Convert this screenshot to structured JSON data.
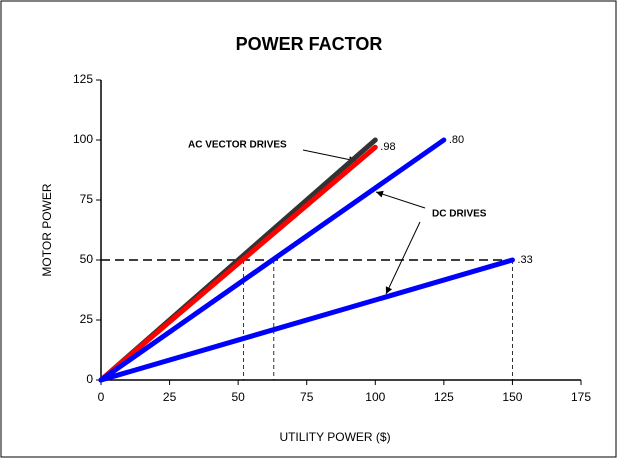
{
  "chart_data": {
    "type": "line",
    "title": "POWER FACTOR",
    "xlabel": "UTILITY POWER ($)",
    "ylabel": "MOTOR POWER",
    "xlim": [
      0,
      175
    ],
    "xticks": [
      0,
      25,
      50,
      75,
      100,
      125,
      150,
      175
    ],
    "ylim": [
      0,
      125
    ],
    "yticks": [
      0,
      25,
      50,
      75,
      100,
      125
    ],
    "grid": false,
    "series": [
      {
        "color": "#333333",
        "x": [
          0,
          100
        ],
        "values": [
          0,
          100
        ]
      },
      {
        "color": "#ff0000",
        "x": [
          0,
          100
        ],
        "values": [
          0,
          97
        ],
        "label": ".98"
      },
      {
        "color": "#0000ff",
        "x": [
          0,
          125
        ],
        "values": [
          0,
          100
        ],
        "label": ".80"
      },
      {
        "color": "#0000ff",
        "x": [
          0,
          150
        ],
        "values": [
          0,
          50
        ],
        "label": ".33"
      }
    ],
    "hline": {
      "y": 50,
      "xmax": 150
    },
    "vlines": [
      52,
      63,
      150
    ],
    "annotations": [
      "AC VECTOR DRIVES",
      "DC DRIVES"
    ]
  }
}
